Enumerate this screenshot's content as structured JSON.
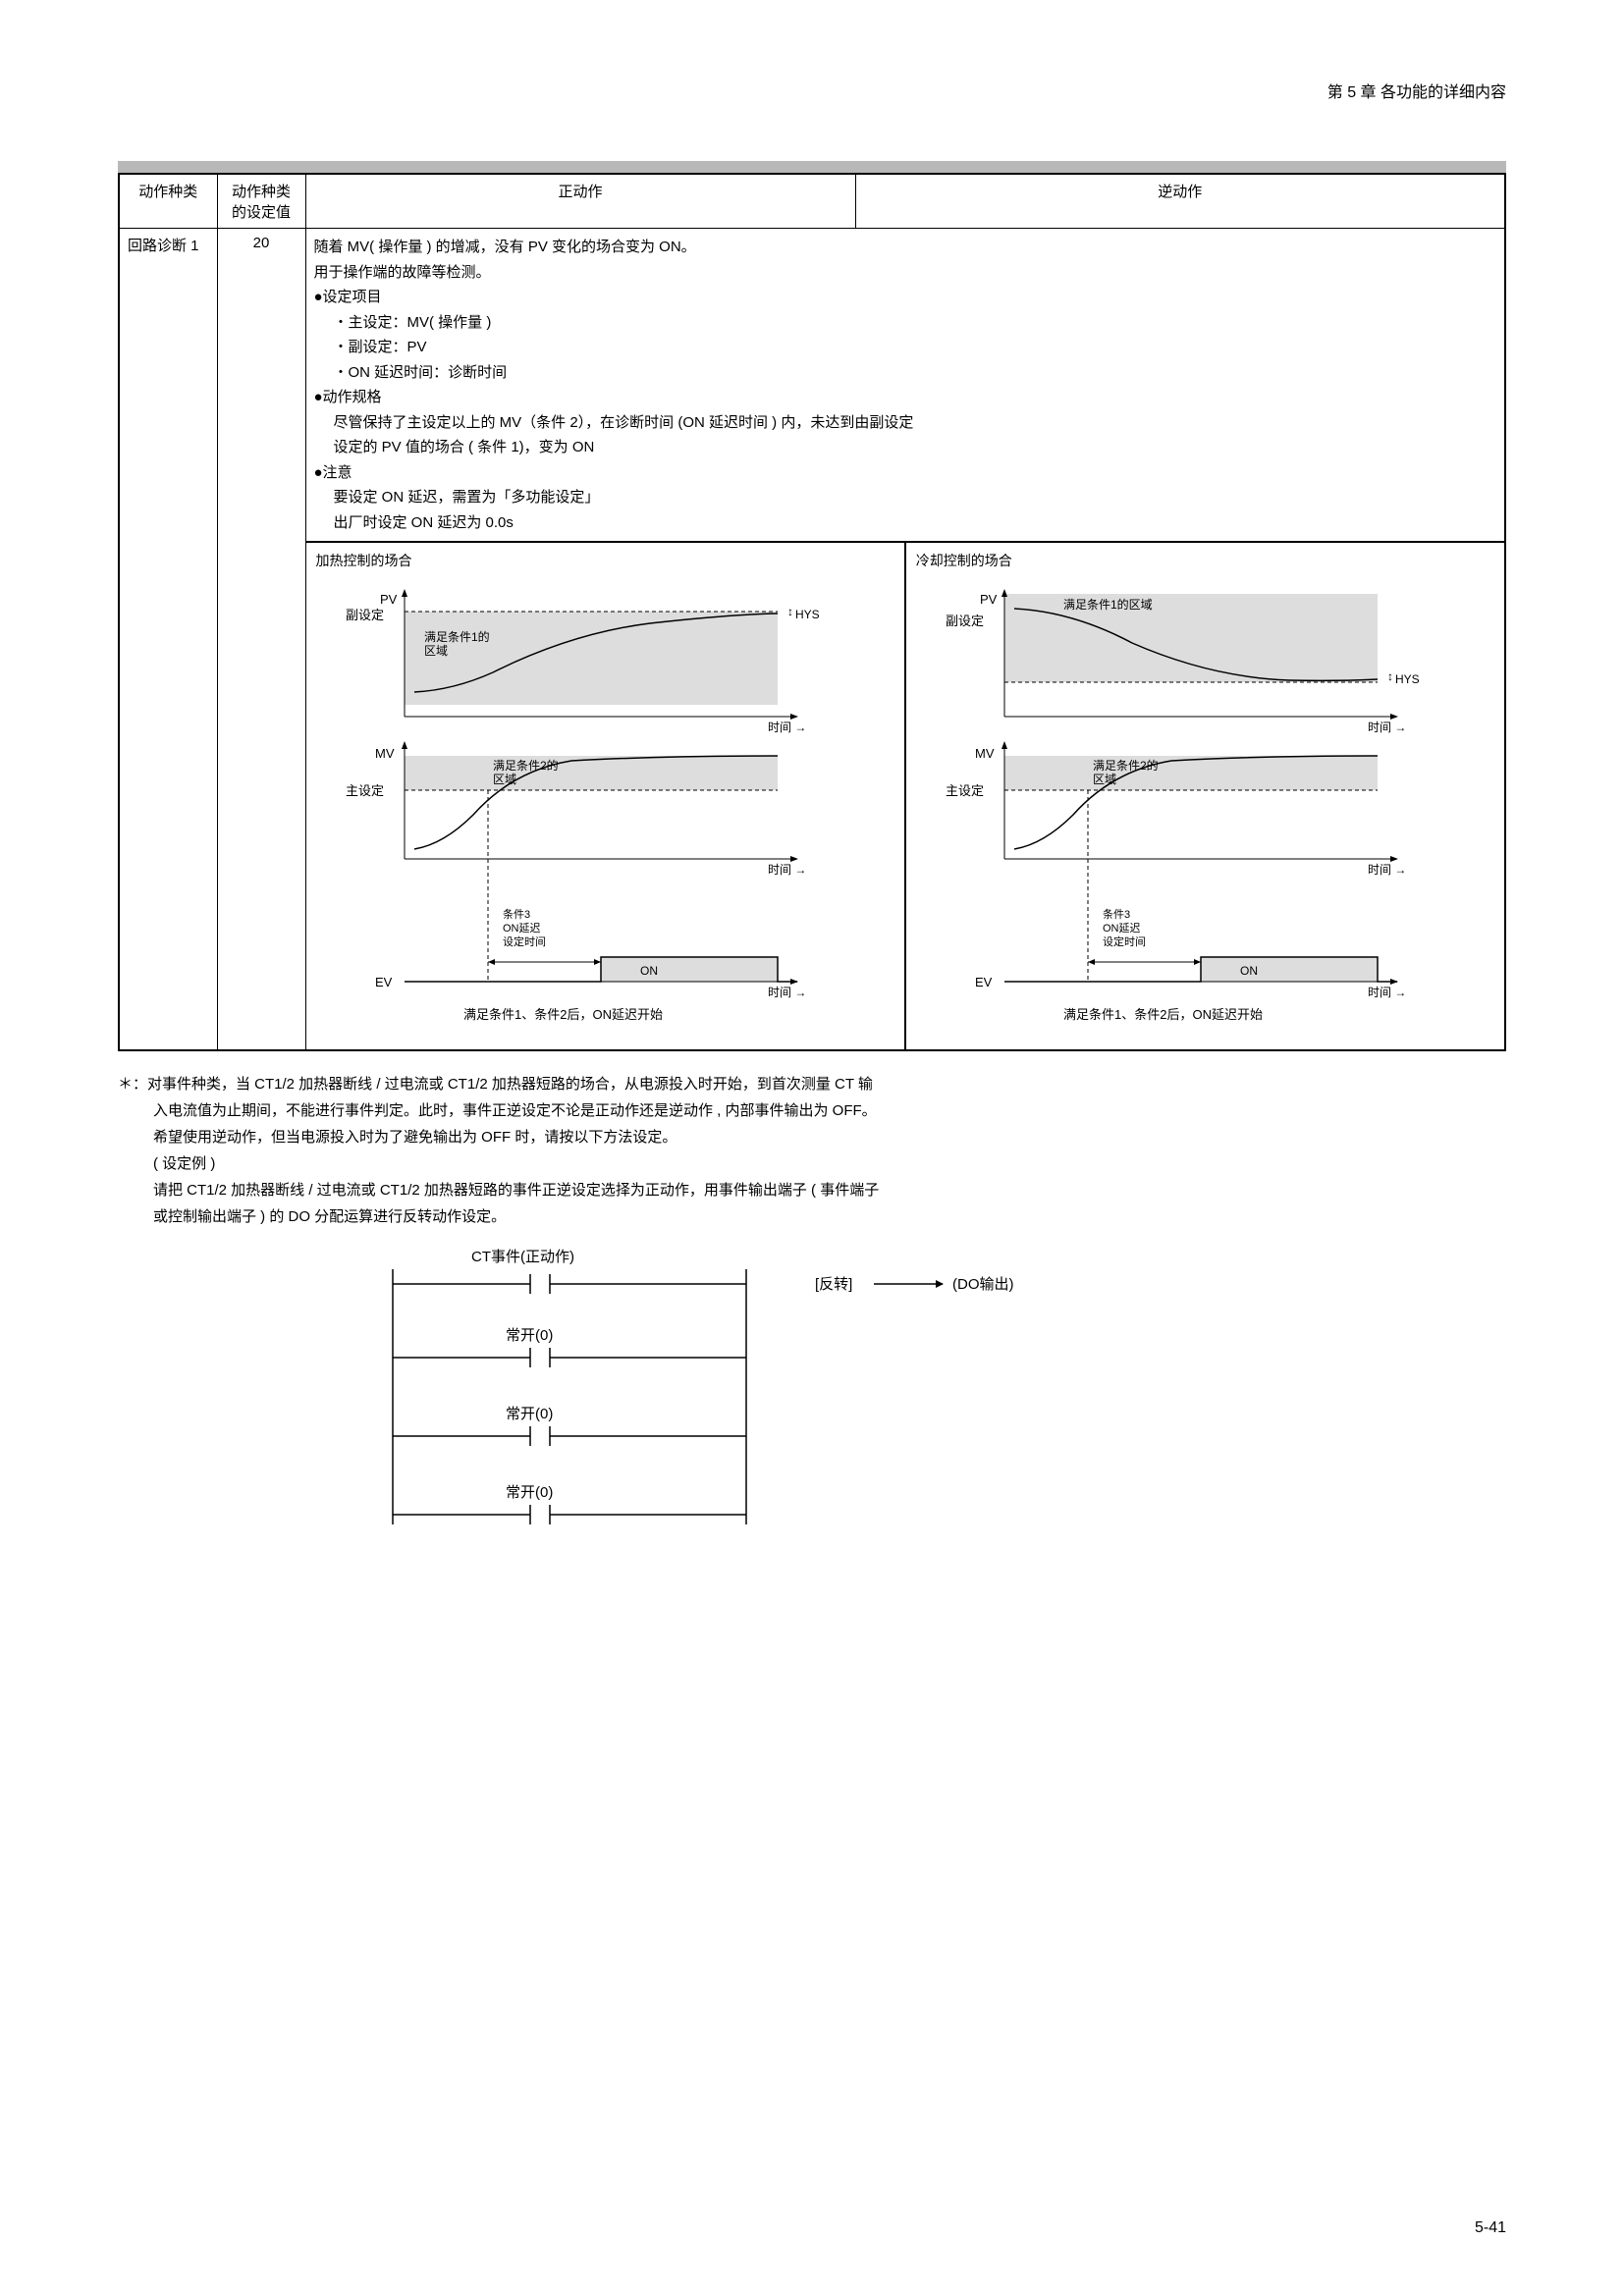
{
  "header": {
    "chapter": "第 5 章 各功能的详细内容"
  },
  "table": {
    "headers": {
      "c1": "动作种类",
      "c2": "动作种类\n的设定值",
      "c3": "正动作",
      "c4": "逆动作"
    },
    "row": {
      "name": "回路诊断 1",
      "value": "20",
      "desc": {
        "l1": "随着 MV( 操作量 ) 的增减，没有 PV 变化的场合变为 ON。",
        "l2": "用于操作端的故障等检测。",
        "l3": "●设定项目",
        "l4": "・主设定：MV( 操作量 )",
        "l5": "・副设定：PV",
        "l6": "・ON 延迟时间：诊断时间",
        "l7": "●动作规格",
        "l8": "尽管保持了主设定以上的 MV（条件 2），在诊断时间 (ON 延迟时间 ) 内，未达到由副设定",
        "l9": "设定的 PV 值的场合 ( 条件 1)，变为 ON",
        "l10": "●注意",
        "l11": "要设定 ON 延迟，需置为「多功能设定」",
        "l12": "出厂时设定 ON 延迟为 0.0s"
      }
    },
    "charts": {
      "left_title": "加热控制的场合",
      "right_title": "冷却控制的场合",
      "labels": {
        "pv": "PV",
        "mv": "MV",
        "ev": "EV",
        "aux_set": "副设定",
        "main_set": "主设定",
        "time": "时间",
        "hys": "HYS",
        "cond1_area": "满足条件1的\n区域",
        "cond1_area_r": "满足条件1的区域",
        "cond2_area": "满足条件2的\n区域",
        "cond3": "条件3\nON延迟\n设定时间",
        "on": "ON",
        "caption": "满足条件1、条件2后，ON延迟开始"
      },
      "style": {
        "shade_fill": "#dddddd",
        "curve_stroke": "#000000",
        "axis_stroke": "#000000",
        "dash": "4,3"
      }
    }
  },
  "footnote": {
    "p1": "＊：对事件种类，当 CT1/2 加热器断线 / 过电流或 CT1/2 加热器短路的场合，从电源投入时开始，到首次测量 CT 输",
    "p2": "入电流值为止期间，不能进行事件判定。此时，事件正逆设定不论是正动作还是逆动作 , 内部事件输出为 OFF。",
    "p3": "希望使用逆动作，但当电源投入时为了避免输出为 OFF 时，请按以下方法设定。",
    "p4": "( 设定例 )",
    "p5": "请把 CT1/2 加热器断线 / 过电流或 CT1/2 加热器短路的事件正逆设定选择为正动作，用事件输出端子 ( 事件端子",
    "p6": "或控制输出端子 ) 的 DO 分配运算进行反转动作设定。"
  },
  "ladder": {
    "top": "CT事件(正动作)",
    "nc": "常开(0)",
    "rev": "[反转]",
    "out": "(DO输出)"
  },
  "page_num": "5-41"
}
